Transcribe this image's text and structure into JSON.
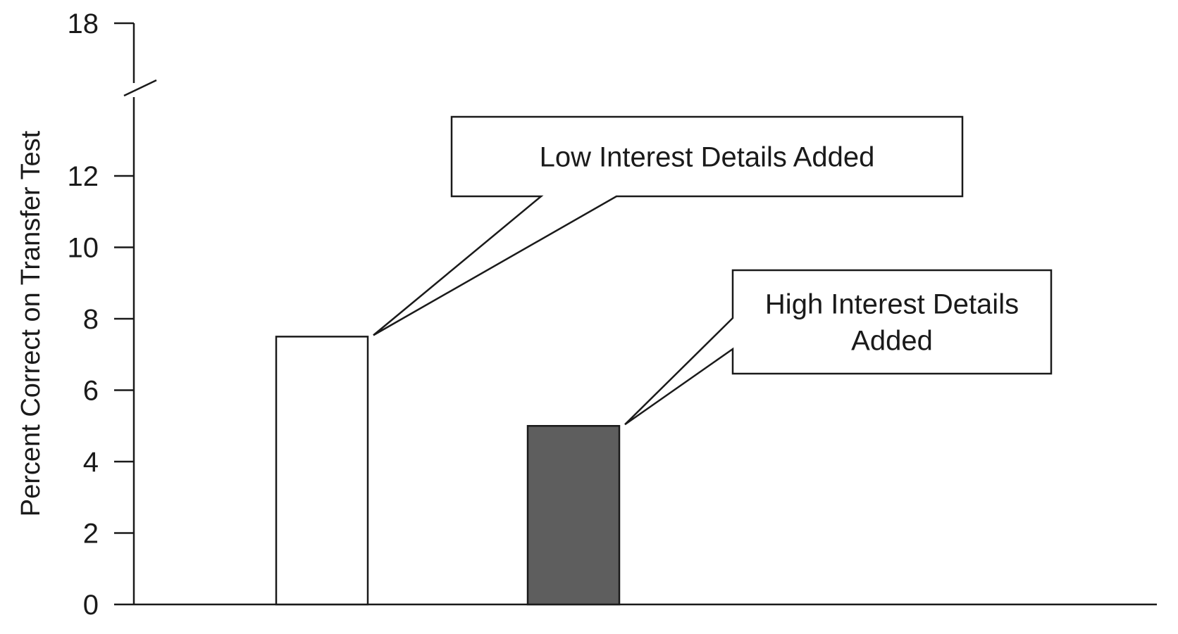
{
  "chart_data": {
    "type": "bar",
    "title": "",
    "xlabel": "",
    "ylabel": "Percent Correct on Transfer Test",
    "ylim": [
      0,
      18
    ],
    "axis_break": [
      13,
      17
    ],
    "y_ticks": [
      0,
      2,
      4,
      6,
      8,
      10,
      12,
      18
    ],
    "categories": [
      "Low Interest Details Added",
      "High Interest Details Added"
    ],
    "values": [
      7.5,
      5.0
    ],
    "bar_colors": [
      "#ffffff",
      "#5e5e5e"
    ],
    "callouts": [
      {
        "category_index": 0,
        "lines": [
          "Low Interest Details Added"
        ]
      },
      {
        "category_index": 1,
        "lines": [
          "High Interest Details",
          "Added"
        ]
      }
    ]
  }
}
